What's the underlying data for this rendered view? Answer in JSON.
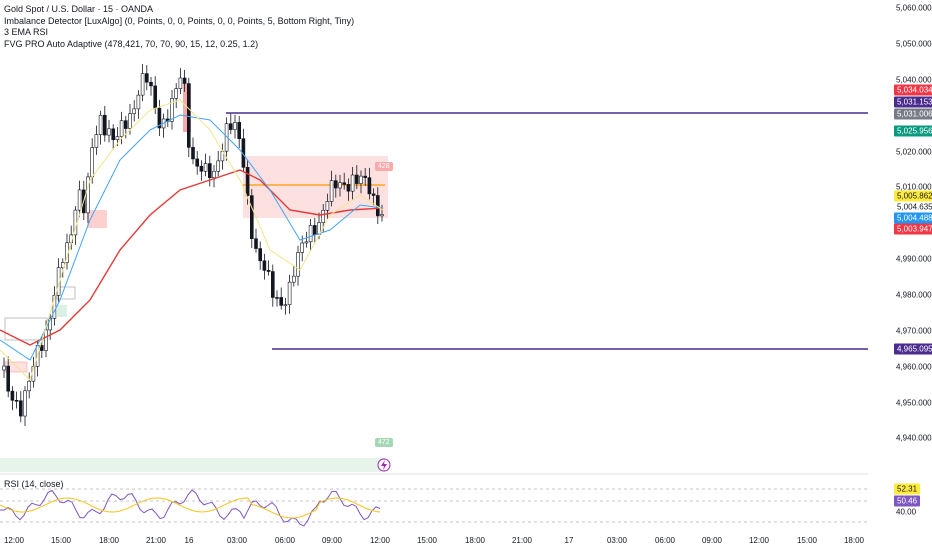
{
  "legend": {
    "symbol": "Gold Spot / U.S. Dollar · 15 · OANDA",
    "indicators": [
      "Imbalance Detector [LuxAlgo] (0, Points, 0, 0, Points, 0, 0, Points, 5, Bottom Right, Tiny)",
      "3 EMA RSI",
      "FVG PRO Auto Adaptive (478,421, 70, 70, 90, 15, 12, 0.25, 1.2)"
    ]
  },
  "rsi": {
    "label": "RSI (14, close)",
    "value_1": "52.31",
    "value_2": "50.46",
    "level": "40.00"
  },
  "price_axis": {
    "ticks": [
      "5,060.000",
      "5,050.000",
      "5,040.000",
      "5,020.000",
      "5,010.000",
      "4,990.000",
      "4,980.000",
      "4,970.000",
      "4,960.000",
      "4,950.000",
      "4,940.000"
    ],
    "badges": [
      {
        "text": "5,034.034",
        "color": "#f23645",
        "fg": "#ffffff"
      },
      {
        "text": "5,031.153",
        "color": "#4a2b8e",
        "fg": "#ffffff"
      },
      {
        "text": "5,031.006",
        "color": "#787b86",
        "fg": "#ffffff"
      },
      {
        "text": "5,025.956",
        "color": "#089981",
        "fg": "#ffffff"
      },
      {
        "text": "5,005.862",
        "color": "#ffeb3b",
        "fg": "#131722"
      },
      {
        "text": "5,004.635",
        "color": "#ffffff",
        "fg": "#131722"
      },
      {
        "text": "5,004.488",
        "color": "#2196f3",
        "fg": "#ffffff"
      },
      {
        "text": "5,003.947",
        "color": "#f23645",
        "fg": "#ffffff"
      },
      {
        "text": "4,965.095",
        "color": "#4a2b8e",
        "fg": "#ffffff"
      }
    ]
  },
  "time_axis": [
    "12:00",
    "15:00",
    "18:00",
    "21:00",
    "16",
    "03:00",
    "06:00",
    "09:00",
    "12:00",
    "15:00",
    "18:00",
    "21:00",
    "17",
    "03:00",
    "06:00",
    "09:00",
    "12:00",
    "15:00",
    "18:00"
  ],
  "fvg_tags": [
    "428",
    "472"
  ],
  "colors": {
    "up": "#ffffff",
    "down": "#131722",
    "ema_red": "#e53935",
    "ema_blue": "#42a5f5",
    "ema_yellow": "#f0e68c",
    "level": "#4a2b8e",
    "orange": "#ff9800"
  },
  "icons": [
    "lightning-icon"
  ]
}
